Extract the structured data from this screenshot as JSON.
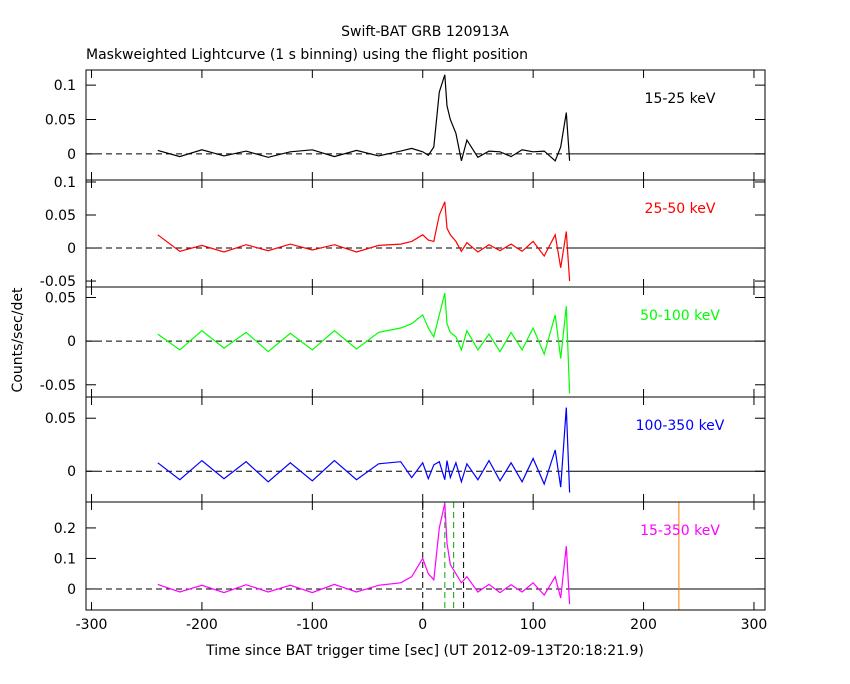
{
  "title": "Swift-BAT GRB 120913A",
  "subtitle": "Maskweighted Lightcurve (1 s binning) using the flight position",
  "x_label": "Time since BAT trigger time [sec] (UT 2012-09-13T20:18:21.9)",
  "y_label": "Counts/sec/det",
  "chart_data": [
    {
      "type": "line",
      "label": "15-25 keV",
      "color": "#000000",
      "xlim": [
        -305,
        310
      ],
      "xticks": [
        -300,
        -200,
        -100,
        0,
        100,
        200,
        300
      ],
      "ylim": [
        -0.038,
        0.122
      ],
      "yticks": [
        0,
        0.05,
        0.1
      ],
      "x": [
        -240,
        -220,
        -200,
        -180,
        -160,
        -140,
        -120,
        -100,
        -80,
        -60,
        -40,
        -20,
        -10,
        0,
        5,
        10,
        15,
        20,
        22,
        25,
        30,
        35,
        40,
        50,
        60,
        70,
        80,
        90,
        100,
        110,
        120,
        125,
        130,
        133
      ],
      "values": [
        0.005,
        -0.004,
        0.006,
        -0.003,
        0.004,
        -0.005,
        0.003,
        0.006,
        -0.004,
        0.005,
        -0.003,
        0.004,
        0.008,
        0.003,
        -0.002,
        0.01,
        0.09,
        0.115,
        0.07,
        0.05,
        0.03,
        -0.01,
        0.02,
        -0.005,
        0.004,
        0.003,
        -0.004,
        0.006,
        0.003,
        0.004,
        -0.01,
        0.01,
        0.06,
        -0.01
      ]
    },
    {
      "type": "line",
      "label": "25-50 keV",
      "color": "#ff0000",
      "xlim": [
        -305,
        310
      ],
      "xticks": [
        -300,
        -200,
        -100,
        0,
        100,
        200,
        300
      ],
      "ylim": [
        -0.059,
        0.103
      ],
      "yticks": [
        -0.05,
        0,
        0.05,
        0.1
      ],
      "x": [
        -240,
        -220,
        -200,
        -180,
        -160,
        -140,
        -120,
        -100,
        -80,
        -60,
        -40,
        -20,
        -10,
        0,
        5,
        10,
        15,
        20,
        22,
        25,
        30,
        35,
        40,
        50,
        60,
        70,
        80,
        90,
        100,
        110,
        120,
        125,
        130,
        133
      ],
      "values": [
        0.02,
        -0.005,
        0.004,
        -0.006,
        0.005,
        -0.004,
        0.006,
        -0.003,
        0.005,
        -0.006,
        0.004,
        0.006,
        0.01,
        0.02,
        0.012,
        0.01,
        0.05,
        0.07,
        0.03,
        0.02,
        0.01,
        -0.005,
        0.008,
        -0.006,
        0.005,
        -0.004,
        0.006,
        -0.005,
        0.01,
        -0.012,
        0.02,
        -0.03,
        0.025,
        -0.05
      ]
    },
    {
      "type": "line",
      "label": "50-100 keV",
      "color": "#00ff00",
      "xlim": [
        -305,
        310
      ],
      "xticks": [
        -300,
        -200,
        -100,
        0,
        100,
        200,
        300
      ],
      "ylim": [
        -0.064,
        0.062
      ],
      "yticks": [
        -0.05,
        0,
        0.05
      ],
      "x": [
        -240,
        -220,
        -200,
        -180,
        -160,
        -140,
        -120,
        -100,
        -80,
        -60,
        -40,
        -20,
        -10,
        0,
        5,
        10,
        15,
        20,
        22,
        25,
        30,
        35,
        40,
        50,
        60,
        70,
        80,
        90,
        100,
        110,
        120,
        125,
        130,
        133
      ],
      "values": [
        0.008,
        -0.01,
        0.012,
        -0.008,
        0.01,
        -0.012,
        0.009,
        -0.01,
        0.012,
        -0.009,
        0.01,
        0.015,
        0.02,
        0.03,
        0.015,
        0.005,
        0.03,
        0.055,
        0.02,
        0.01,
        0.005,
        -0.01,
        0.012,
        -0.01,
        0.008,
        -0.012,
        0.01,
        -0.01,
        0.015,
        -0.015,
        0.03,
        -0.02,
        0.04,
        -0.06
      ]
    },
    {
      "type": "line",
      "label": "100-350 keV",
      "color": "#0000ff",
      "xlim": [
        -305,
        310
      ],
      "xticks": [
        -300,
        -200,
        -100,
        0,
        100,
        200,
        300
      ],
      "ylim": [
        -0.029,
        0.07
      ],
      "yticks": [
        0,
        0.05
      ],
      "x": [
        -240,
        -220,
        -200,
        -180,
        -160,
        -140,
        -120,
        -100,
        -80,
        -60,
        -40,
        -20,
        -10,
        0,
        5,
        10,
        15,
        20,
        22,
        25,
        30,
        35,
        40,
        50,
        60,
        70,
        80,
        90,
        100,
        110,
        120,
        125,
        130,
        133
      ],
      "values": [
        0.008,
        -0.008,
        0.01,
        -0.007,
        0.009,
        -0.01,
        0.008,
        -0.009,
        0.01,
        -0.008,
        0.007,
        0.009,
        -0.006,
        0.008,
        -0.007,
        0.006,
        0.009,
        -0.008,
        0.01,
        -0.006,
        0.008,
        -0.01,
        0.007,
        -0.008,
        0.01,
        -0.009,
        0.008,
        -0.01,
        0.012,
        -0.012,
        0.02,
        -0.015,
        0.06,
        -0.02
      ]
    },
    {
      "type": "line",
      "label": "15-350 keV",
      "color": "#ff00ff",
      "xlim": [
        -305,
        310
      ],
      "xticks": [
        -300,
        -200,
        -100,
        0,
        100,
        200,
        300
      ],
      "ylim": [
        -0.069,
        0.285
      ],
      "yticks": [
        0,
        0.1,
        0.2
      ],
      "x": [
        -240,
        -220,
        -200,
        -180,
        -160,
        -140,
        -120,
        -100,
        -80,
        -60,
        -40,
        -20,
        -10,
        0,
        5,
        10,
        15,
        20,
        22,
        25,
        30,
        35,
        40,
        50,
        60,
        70,
        80,
        90,
        100,
        110,
        120,
        125,
        130,
        133
      ],
      "values": [
        0.015,
        -0.01,
        0.012,
        -0.012,
        0.014,
        -0.01,
        0.012,
        -0.012,
        0.015,
        -0.01,
        0.012,
        0.02,
        0.04,
        0.1,
        0.05,
        0.03,
        0.2,
        0.28,
        0.15,
        0.08,
        0.05,
        0.02,
        0.04,
        -0.01,
        0.015,
        -0.012,
        0.014,
        -0.01,
        0.02,
        -0.02,
        0.04,
        -0.03,
        0.14,
        -0.05
      ],
      "vlines": [
        {
          "x": 0,
          "color": "#000000",
          "dashed": true
        },
        {
          "x": 37,
          "color": "#000000",
          "dashed": true
        },
        {
          "x": 20,
          "color": "#00aa00",
          "dashed": true
        },
        {
          "x": 28,
          "color": "#00aa00",
          "dashed": true
        },
        {
          "x": 232,
          "color": "#ff8000",
          "dashed": false
        }
      ]
    }
  ]
}
